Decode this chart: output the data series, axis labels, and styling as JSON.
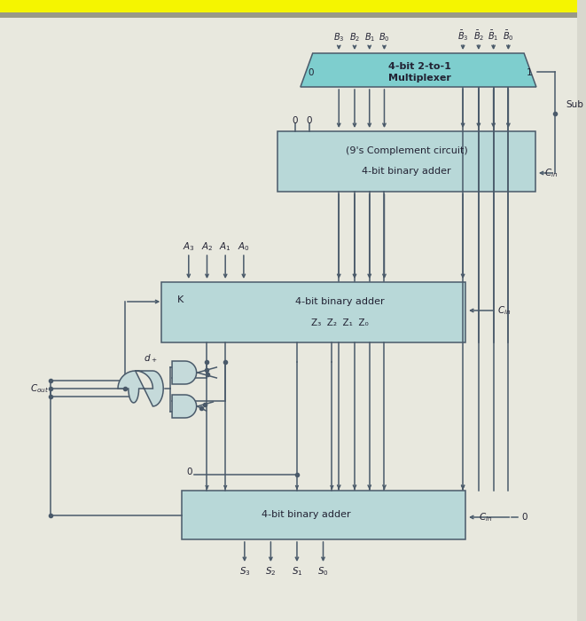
{
  "bg_color": "#d8d8ce",
  "page_color": "#e8e8de",
  "header_color": "#f5f500",
  "mux_fill": "#7ecece",
  "box_fill": "#b8d8d8",
  "box_stroke": "#4a5a6a",
  "wire_color": "#4a5a6a",
  "gate_fill": "#c5dada",
  "mux_label_line1": "4-bit 2-to-1",
  "mux_label_line2": "Multiplexer",
  "comp_label_line1": "(9's Complement circuit)",
  "comp_label_line2": "4-bit binary adder",
  "adder1_center_label": "4-bit binary adder",
  "z_label": "Z₃  Z₂  Z₁  Z₀",
  "adder2_label": "4-bit binary adder",
  "sub_label": "Sub"
}
